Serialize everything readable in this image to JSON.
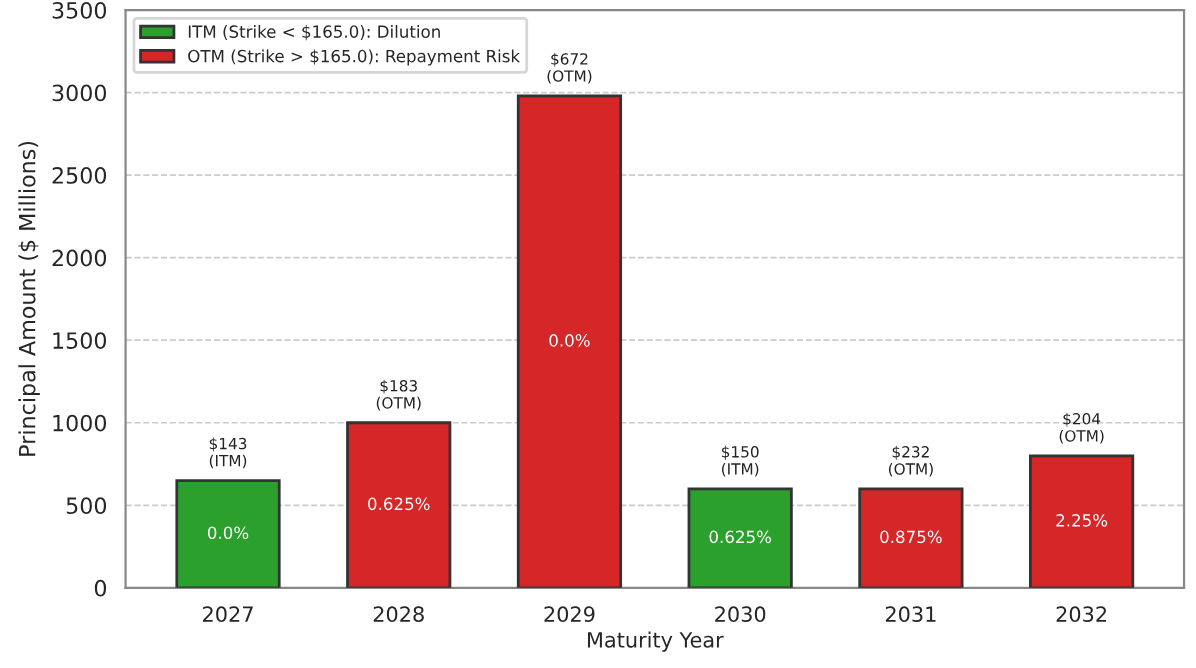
{
  "chart_data": {
    "type": "bar",
    "xlabel": "Maturity Year",
    "ylabel": "Principal Amount ($ Millions)",
    "categories": [
      "2027",
      "2028",
      "2029",
      "2030",
      "2031",
      "2032"
    ],
    "series": [
      {
        "name": "ITM (Strike < $165.0): Dilution",
        "color": "#2ca02c",
        "values": [
          650,
          null,
          null,
          600,
          null,
          null
        ]
      },
      {
        "name": "OTM (Strike > $165.0): Repayment Risk",
        "color": "#d62728",
        "values": [
          null,
          1000,
          2980,
          null,
          600,
          800
        ]
      }
    ],
    "ylim": [
      0,
      3500
    ],
    "yticks": [
      0,
      500,
      1000,
      1500,
      2000,
      2500,
      3000,
      3500
    ],
    "grid": "y",
    "legend": "top left",
    "annotations": [
      {
        "text": "$143\n(ITM)",
        "x": "2027",
        "y": 650
      },
      {
        "text": "$183\n(OTM)",
        "x": "2028",
        "y": 1000
      },
      {
        "text": "$672\n(OTM)",
        "x": "2029",
        "y": 2980
      },
      {
        "text": "$150\n(ITM)",
        "x": "2030",
        "y": 600
      },
      {
        "text": "$232\n(OTM)",
        "x": "2031",
        "y": 600
      },
      {
        "text": "$204\n(OTM)",
        "x": "2032",
        "y": 800
      },
      "0.0%",
      "0.625%",
      "0.0%",
      "0.625%",
      "0.875%",
      "2.25%"
    ]
  }
}
